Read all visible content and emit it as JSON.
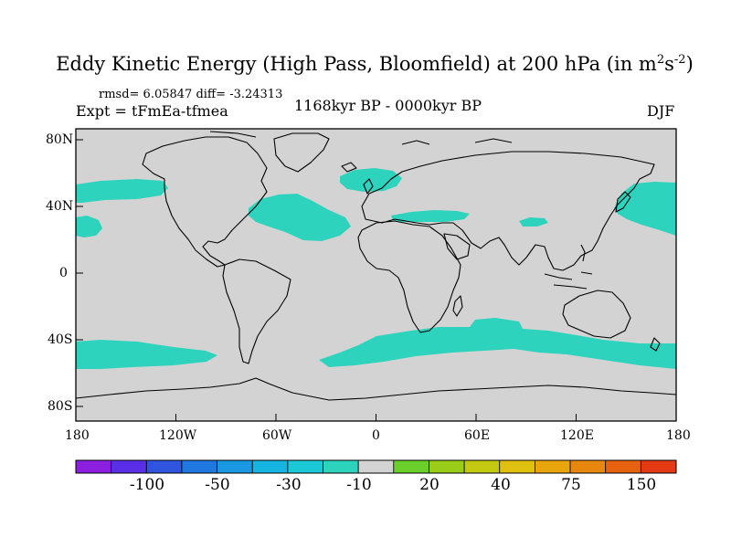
{
  "title": {
    "main": "Eddy Kinetic Energy (High Pass, Bloomfield) at 200 hPa (in m",
    "sup1": "2",
    "mid": "s",
    "sup2": "-2",
    "end": ")"
  },
  "stats": "rmsd= 6.05847 diff= -3.24313",
  "expt": "Expt = tFmEa-tfmea",
  "period": "1168kyr BP - 0000kyr BP",
  "season": "DJF",
  "colors": {
    "land_ocean": "#d3d3d3",
    "anomaly": "#2ed3be",
    "coast": "#000000"
  },
  "map_axes": {
    "lon_ticks": [
      "180",
      "120W",
      "60W",
      "0",
      "60E",
      "120E",
      "180"
    ],
    "lat_ticks": [
      "80N",
      "40N",
      "0",
      "40S",
      "80S"
    ]
  },
  "colorbar": {
    "colors": [
      "#8c1fe0",
      "#5a2ee6",
      "#2f54de",
      "#1f77e0",
      "#1a98e2",
      "#16b4e0",
      "#1ac8d6",
      "#2ed3be",
      "#d3d3d3",
      "#6acf2a",
      "#9acd18",
      "#c2c910",
      "#e0c00e",
      "#e8a60c",
      "#e8870e",
      "#e6620f",
      "#e23a12"
    ],
    "labels": [
      "-100",
      "-50",
      "-30",
      "-10",
      "20",
      "40",
      "75",
      "150"
    ]
  }
}
